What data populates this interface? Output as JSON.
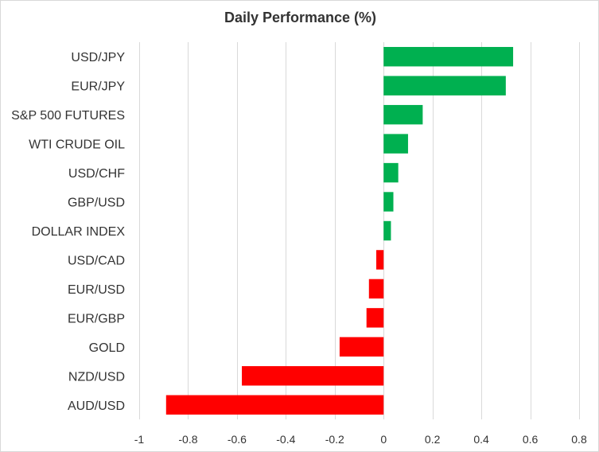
{
  "chart_data": {
    "type": "bar",
    "orientation": "horizontal",
    "title": "Daily Performance  (%)",
    "xlabel": "",
    "ylabel": "",
    "categories": [
      "USD/JPY",
      "EUR/JPY",
      "S&P 500 FUTURES",
      "WTI CRUDE OIL",
      "USD/CHF",
      "GBP/USD",
      "DOLLAR INDEX",
      "USD/CAD",
      "EUR/USD",
      "EUR/GBP",
      "GOLD",
      "NZD/USD",
      "AUD/USD"
    ],
    "values": [
      0.53,
      0.5,
      0.16,
      0.1,
      0.06,
      0.04,
      0.03,
      -0.03,
      -0.06,
      -0.07,
      -0.18,
      -0.58,
      -0.89
    ],
    "xlim": [
      -1,
      0.8
    ],
    "xticks": [
      -1,
      -0.8,
      -0.6,
      -0.4,
      -0.2,
      0,
      0.2,
      0.4,
      0.6,
      0.8
    ],
    "xtick_labels": [
      "-1",
      "-0.8",
      "-0.6",
      "-0.4",
      "-0.2",
      "0",
      "0.2",
      "0.4",
      "0.6",
      "0.8"
    ],
    "grid": "vertical",
    "legend": "none",
    "colors": {
      "positive": "#00b050",
      "negative": "#ff0000",
      "grid": "#d9d9d9",
      "text": "#333333"
    }
  }
}
